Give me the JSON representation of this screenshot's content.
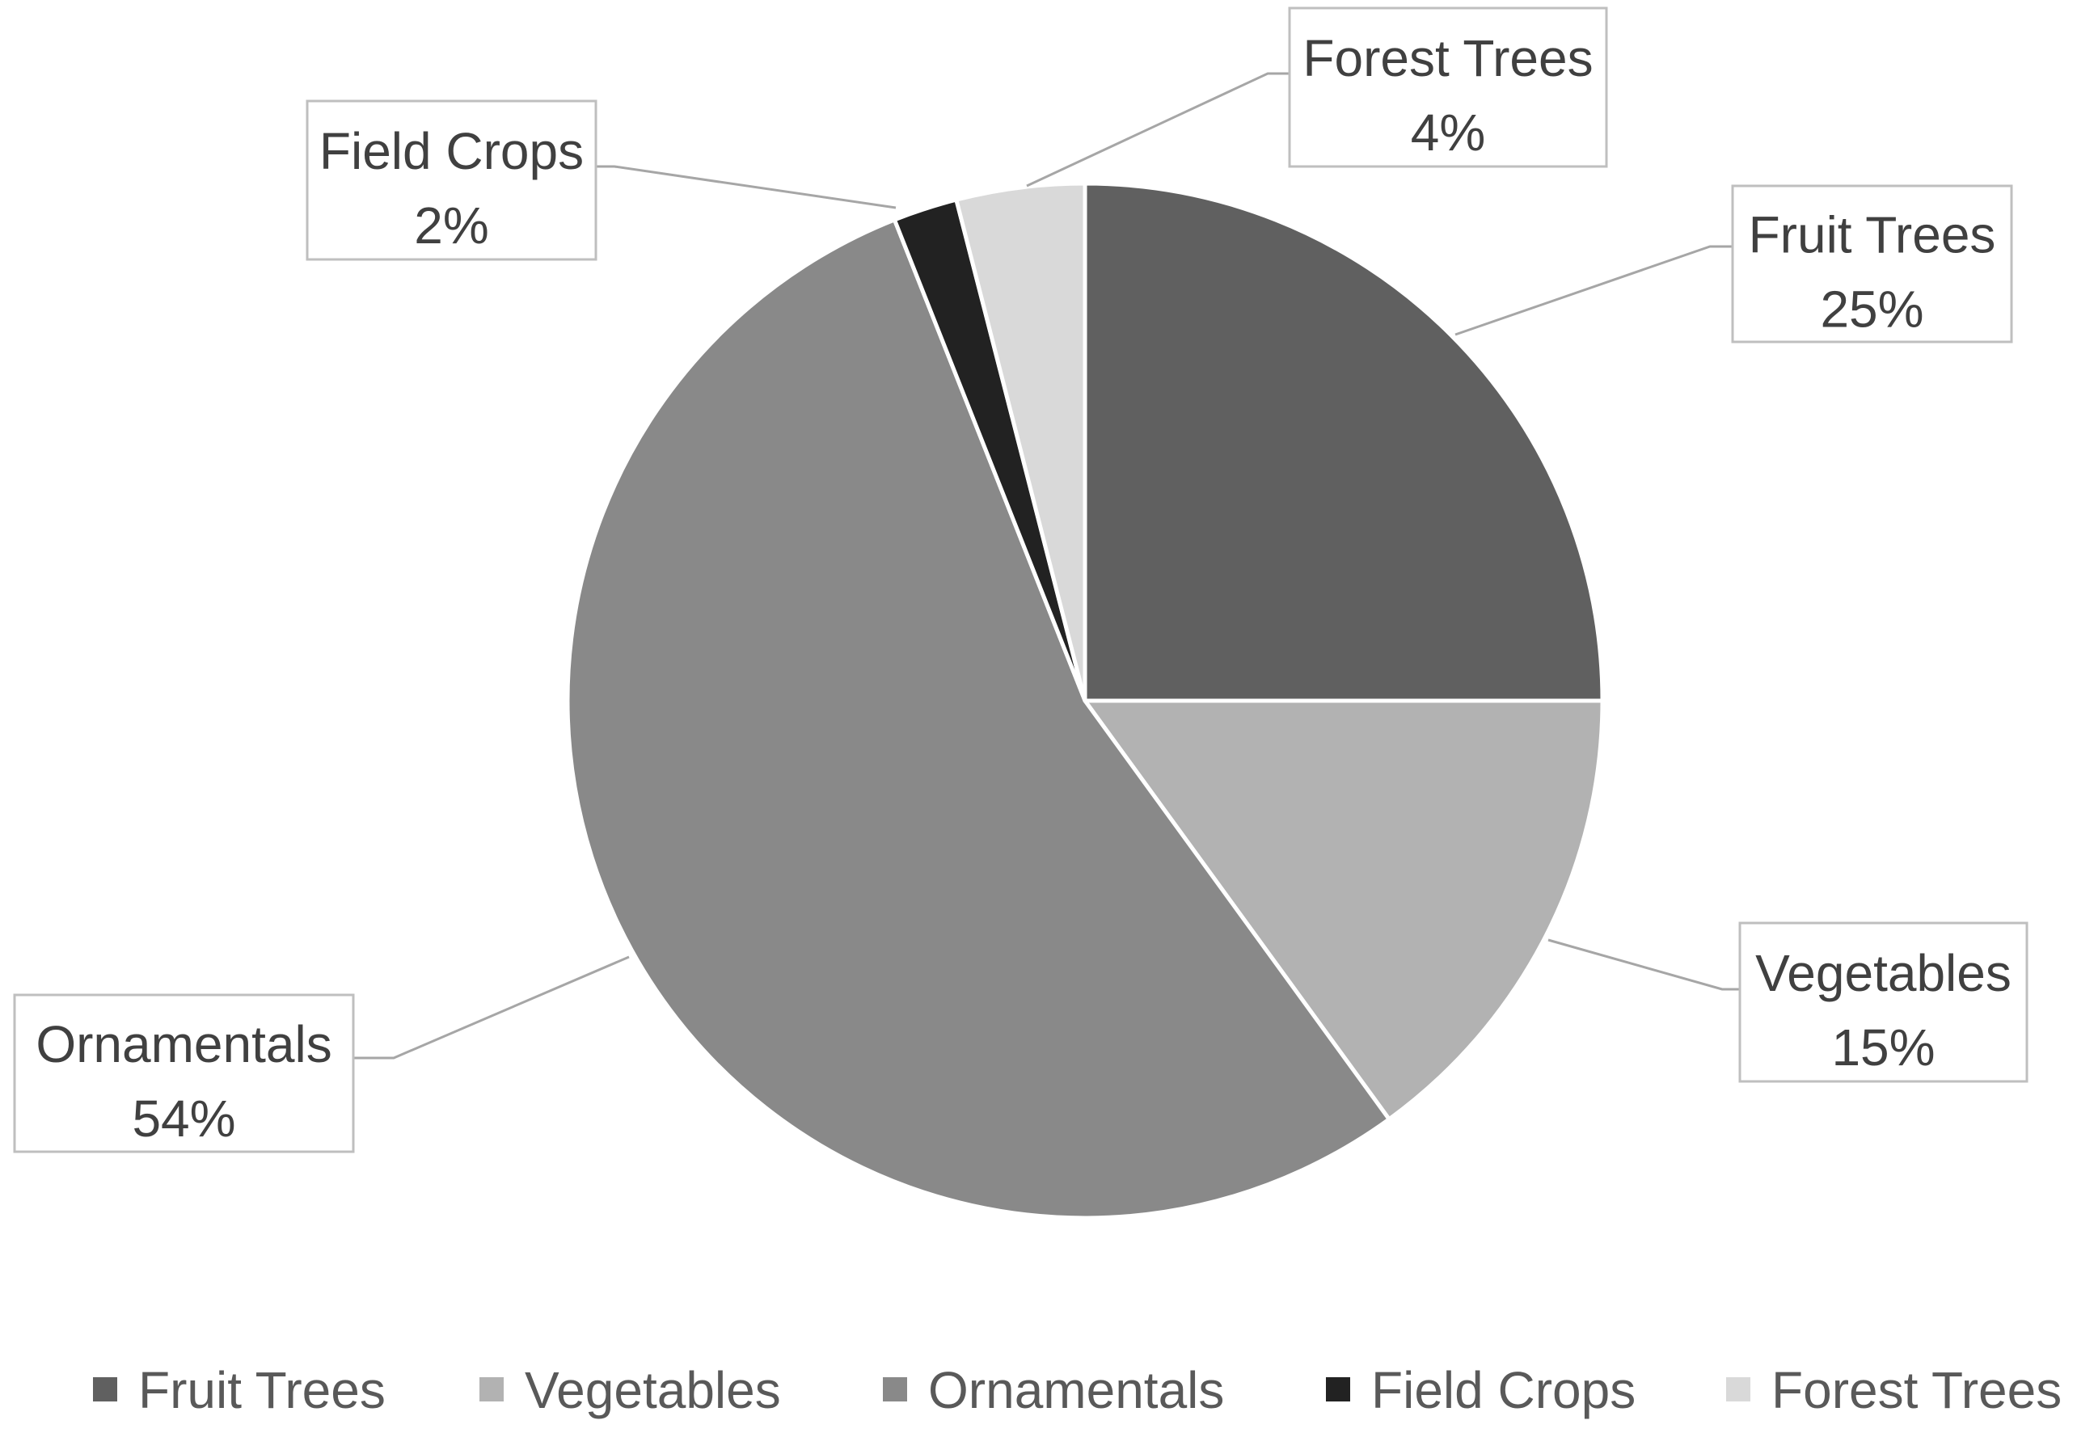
{
  "chart_data": {
    "type": "pie",
    "title": "",
    "start_angle_deg": 0,
    "direction": "clockwise",
    "slices": [
      {
        "label": "Fruit Trees",
        "value": 25,
        "percent_label": "25%",
        "color": "#606060"
      },
      {
        "label": "Vegetables",
        "value": 15,
        "percent_label": "15%",
        "color": "#b2b2b2"
      },
      {
        "label": "Ornamentals",
        "value": 54,
        "percent_label": "54%",
        "color": "#898989"
      },
      {
        "label": "Field Crops",
        "value": 2,
        "percent_label": "2%",
        "color": "#222222"
      },
      {
        "label": "Forest Trees",
        "value": 4,
        "percent_label": "4%",
        "color": "#d9d9d9"
      }
    ],
    "data_labels": "outside with leader lines, category name and percentage",
    "legend_position": "bottom"
  }
}
